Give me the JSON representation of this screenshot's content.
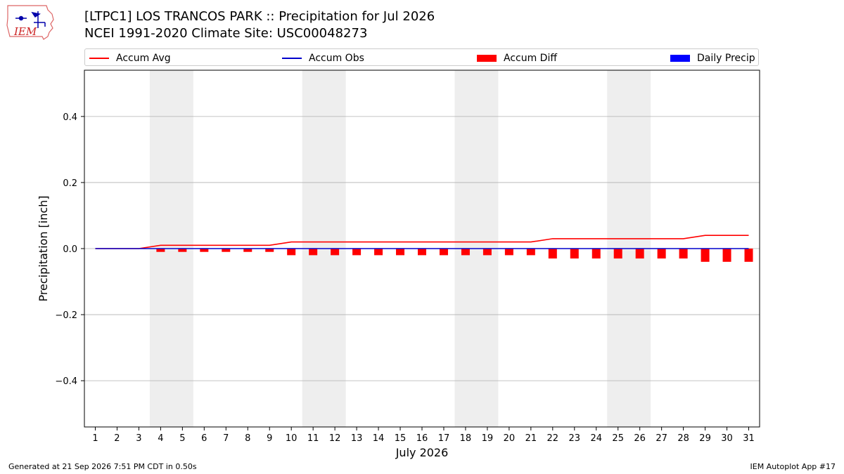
{
  "header": {
    "title_line1": "[LTPC1] LOS TRANCOS PARK :: Precipitation for Jul 2026",
    "title_line2": "NCEI 1991-2020 Climate Site: USC00048273"
  },
  "logo": {
    "text": "IEM"
  },
  "legend": [
    {
      "label": "Accum Avg",
      "kind": "line",
      "color": "#ff0000"
    },
    {
      "label": "Accum Obs",
      "kind": "line",
      "color": "#0000cc"
    },
    {
      "label": "Accum Diff",
      "kind": "box",
      "color": "#ff0000"
    },
    {
      "label": "Daily Precip",
      "kind": "box",
      "color": "#0000ff"
    }
  ],
  "footer": {
    "left": "Generated at 21 Sep 2026 7:51 PM CDT in 0.50s",
    "right": "IEM Autoplot App #17"
  },
  "chart_data": {
    "type": "line",
    "xlabel": "July 2026",
    "ylabel": "Precipitation [inch]",
    "xlim": [
      0.5,
      31.5
    ],
    "ylim": [
      -0.54,
      0.54
    ],
    "yticks": [
      -0.4,
      -0.2,
      0.0,
      0.2,
      0.4
    ],
    "ytick_labels": [
      "−0.4",
      "−0.2",
      "0.0",
      "0.2",
      "0.4"
    ],
    "x": [
      1,
      2,
      3,
      4,
      5,
      6,
      7,
      8,
      9,
      10,
      11,
      12,
      13,
      14,
      15,
      16,
      17,
      18,
      19,
      20,
      21,
      22,
      23,
      24,
      25,
      26,
      27,
      28,
      29,
      30,
      31
    ],
    "weekend_shading": [
      [
        3.5,
        5.5
      ],
      [
        10.5,
        12.5
      ],
      [
        17.5,
        19.5
      ],
      [
        24.5,
        26.5
      ]
    ],
    "grid": "horizontal",
    "series": [
      {
        "name": "Accum Avg",
        "type": "line",
        "color": "#ff0000",
        "values": [
          0,
          0,
          0,
          0.01,
          0.01,
          0.01,
          0.01,
          0.01,
          0.01,
          0.02,
          0.02,
          0.02,
          0.02,
          0.02,
          0.02,
          0.02,
          0.02,
          0.02,
          0.02,
          0.02,
          0.02,
          0.03,
          0.03,
          0.03,
          0.03,
          0.03,
          0.03,
          0.03,
          0.04,
          0.04,
          0.04
        ]
      },
      {
        "name": "Accum Obs",
        "type": "line",
        "color": "#0000cc",
        "values": [
          0,
          0,
          0,
          0,
          0,
          0,
          0,
          0,
          0,
          0,
          0,
          0,
          0,
          0,
          0,
          0,
          0,
          0,
          0,
          0,
          0,
          0,
          0,
          0,
          0,
          0,
          0,
          0,
          0,
          0,
          0
        ]
      },
      {
        "name": "Accum Diff",
        "type": "bar",
        "color": "#ff0000",
        "values": [
          0,
          0,
          0,
          -0.01,
          -0.01,
          -0.01,
          -0.01,
          -0.01,
          -0.01,
          -0.02,
          -0.02,
          -0.02,
          -0.02,
          -0.02,
          -0.02,
          -0.02,
          -0.02,
          -0.02,
          -0.02,
          -0.02,
          -0.02,
          -0.03,
          -0.03,
          -0.03,
          -0.03,
          -0.03,
          -0.03,
          -0.03,
          -0.04,
          -0.04,
          -0.04
        ]
      },
      {
        "name": "Daily Precip",
        "type": "bar",
        "color": "#0000ff",
        "values": [
          0,
          0,
          0,
          0,
          0,
          0,
          0,
          0,
          0,
          0,
          0,
          0,
          0,
          0,
          0,
          0,
          0,
          0,
          0,
          0,
          0,
          0,
          0,
          0,
          0,
          0,
          0,
          0,
          0,
          0,
          0
        ]
      }
    ]
  }
}
